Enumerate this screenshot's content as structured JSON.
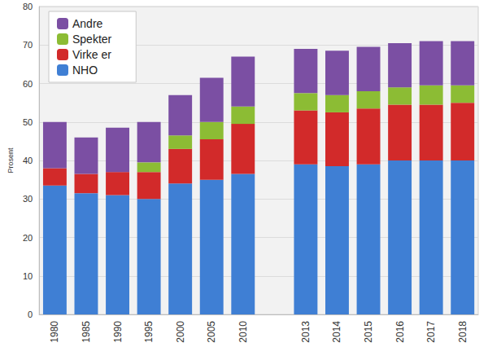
{
  "chart_data": {
    "type": "bar",
    "stacked": true,
    "categories": [
      "1980",
      "1985",
      "1990",
      "1995",
      "2000",
      "2005",
      "2010",
      null,
      "2013",
      "2014",
      "2015",
      "2016",
      "2017",
      "2018"
    ],
    "series": [
      {
        "name": "NHO",
        "color": "#3f7fd4",
        "values": [
          33.5,
          31.5,
          31,
          30,
          34,
          35,
          36.5,
          null,
          39,
          38.5,
          39,
          40,
          40,
          40
        ]
      },
      {
        "name": "Virke er",
        "color": "#d22a2a",
        "values": [
          4.5,
          5,
          6,
          7,
          9,
          10.5,
          13,
          null,
          14,
          14,
          14.5,
          14.5,
          14.5,
          15
        ]
      },
      {
        "name": "Spekter",
        "color": "#8cbc34",
        "values": [
          null,
          null,
          null,
          2.5,
          3.5,
          4.5,
          4.5,
          null,
          4.5,
          4.5,
          4.5,
          4.5,
          5,
          4.5
        ]
      },
      {
        "name": "Andre",
        "color": "#7b4fa3",
        "values": [
          12,
          9.5,
          11.5,
          10.5,
          10.5,
          11.5,
          13,
          null,
          11.5,
          11.5,
          11.5,
          11.5,
          11.5,
          11.5
        ]
      }
    ],
    "y_label": "Prosent",
    "ylim": [
      0,
      80
    ],
    "yticks": [
      0,
      10,
      20,
      30,
      40,
      50,
      60,
      70,
      80
    ],
    "grid": true,
    "legend": "upper left"
  }
}
